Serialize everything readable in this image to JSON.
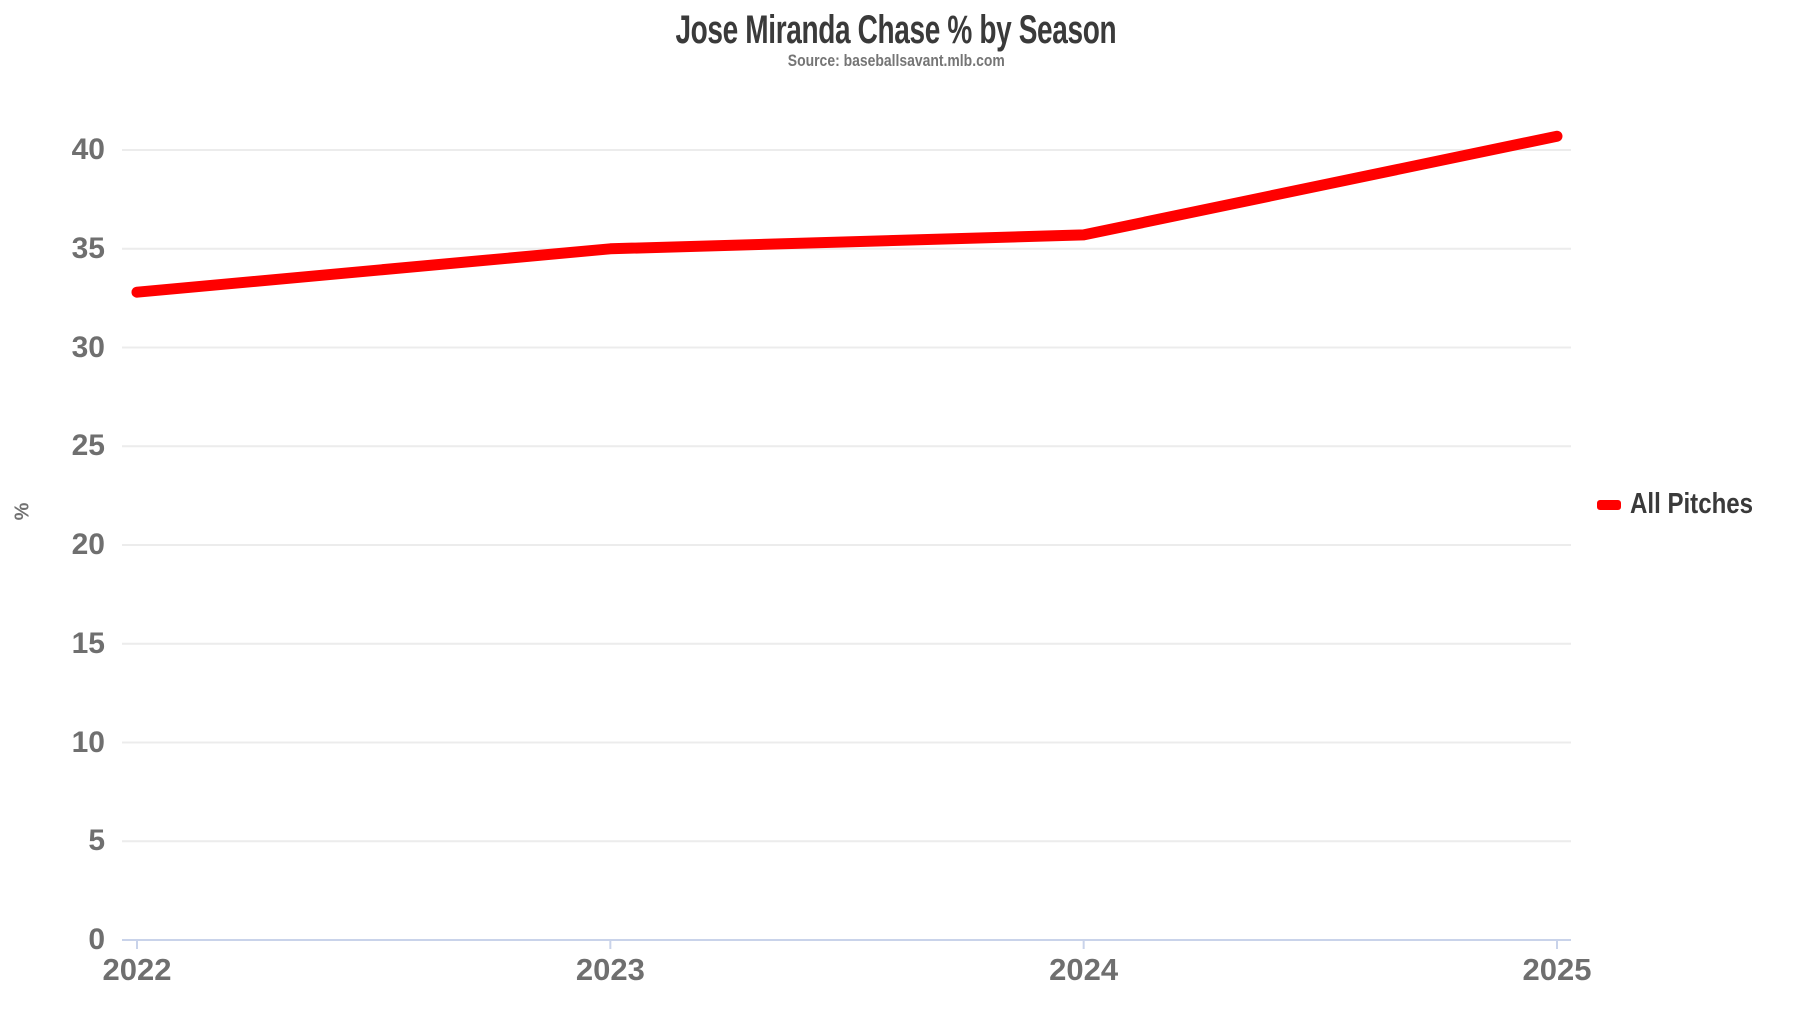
{
  "header": {
    "title": "Jose Miranda Chase % by Season",
    "subtitle": "Source: baseballsavant.mlb.com"
  },
  "chart_data": {
    "type": "line",
    "title": "Jose Miranda Chase % by Season",
    "subtitle": "Source: baseballsavant.mlb.com",
    "x": [
      "2022",
      "2023",
      "2024",
      "2025"
    ],
    "series": [
      {
        "name": "All Pitches",
        "color": "#ff0000",
        "values": [
          32.8,
          35.0,
          35.7,
          40.7
        ]
      }
    ],
    "xlabel": "",
    "ylabel": "%",
    "ylim": [
      0,
      41.5
    ],
    "yticks": [
      0,
      5,
      10,
      15,
      20,
      25,
      30,
      35,
      40
    ],
    "grid": true,
    "legend_position": "right"
  },
  "legend": {
    "items": [
      {
        "label": "All Pitches",
        "color": "#ff0000"
      }
    ]
  },
  "colors": {
    "series": "#ff0000",
    "title_text": "#3a3a3a",
    "subtitle_text": "#757575",
    "tick_text": "#6f6f6f",
    "gridline": "#ececec",
    "axis_line": "#c9d3ea",
    "background": "#ffffff"
  }
}
